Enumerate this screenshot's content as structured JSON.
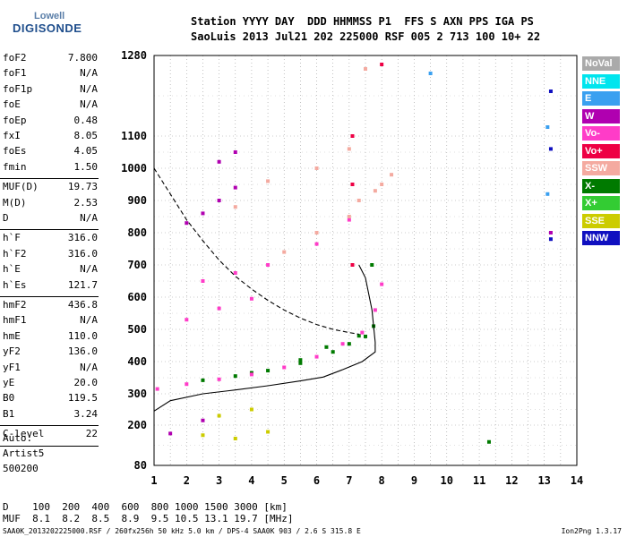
{
  "logo": {
    "top": "Lowell",
    "bottom": "DIGISONDE"
  },
  "header": {
    "line1": "Station YYYY DAY  DDD HHMMSS P1  FFS S AXN PPS IGA PS",
    "line2": "SaoLuis 2013 Jul21 202 225000 RSF 005 2 713 100 10+ 22"
  },
  "params_group1": [
    {
      "name": "foF2",
      "value": "7.800"
    },
    {
      "name": "foF1",
      "value": "N/A"
    },
    {
      "name": "foF1p",
      "value": "N/A"
    },
    {
      "name": "foE",
      "value": "N/A"
    },
    {
      "name": "foEp",
      "value": "0.48"
    },
    {
      "name": "fxI",
      "value": "8.05"
    },
    {
      "name": "foEs",
      "value": "4.05"
    },
    {
      "name": "fmin",
      "value": "1.50"
    }
  ],
  "params_group2": [
    {
      "name": "MUF(D)",
      "value": "19.73"
    },
    {
      "name": "M(D)",
      "value": "2.53"
    },
    {
      "name": "D",
      "value": "N/A"
    }
  ],
  "params_group3": [
    {
      "name": "h`F",
      "value": "316.0"
    },
    {
      "name": "h`F2",
      "value": "316.0"
    },
    {
      "name": "h`E",
      "value": "N/A"
    },
    {
      "name": "h`Es",
      "value": "121.7"
    }
  ],
  "params_group4": [
    {
      "name": "hmF2",
      "value": "436.8"
    },
    {
      "name": "hmF1",
      "value": "N/A"
    },
    {
      "name": "hmE",
      "value": "110.0"
    },
    {
      "name": "yF2",
      "value": "136.0"
    },
    {
      "name": "yF1",
      "value": "N/A"
    },
    {
      "name": "yE",
      "value": "20.0"
    },
    {
      "name": "B0",
      "value": "119.5"
    },
    {
      "name": "B1",
      "value": "3.24"
    }
  ],
  "params_group5": [
    {
      "name": "C-level",
      "value": "22"
    }
  ],
  "autoscale": {
    "label": "Auto:",
    "program": "Artist5",
    "code": "500200"
  },
  "legend": [
    {
      "label": "NoVal",
      "color": "#aaaaaa"
    },
    {
      "label": "NNE",
      "color": "#00e5ee"
    },
    {
      "label": "E",
      "color": "#3aa0f0"
    },
    {
      "label": "W",
      "color": "#b000b0"
    },
    {
      "label": "Vo-",
      "color": "#ff3cc8"
    },
    {
      "label": "Vo+",
      "color": "#ee0044"
    },
    {
      "label": "SSW",
      "color": "#f4aaa0"
    },
    {
      "label": "X-",
      "color": "#007a00"
    },
    {
      "label": "X+",
      "color": "#33cc33"
    },
    {
      "label": "SSE",
      "color": "#cccc00"
    },
    {
      "label": "NNW",
      "color": "#1010c0"
    }
  ],
  "footer": {
    "d_row": "D    100  200  400  600  800 1000 1500 3000 [km]",
    "muf_row": "MUF  8.1  8.2  8.5  8.9  9.5 10.5 13.1 19.7 [MHz]",
    "file_line": "SAA0K_2013202225000.RSF / 260fx256h 50 kHz 5.0 km / DPS-4 SAA0K 903 / 2.6 S 315.8 E",
    "version": "Ion2Png 1.3.17"
  },
  "chart_data": {
    "type": "scatter",
    "title": "",
    "xlabel": "",
    "ylabel": "",
    "xlim": [
      1,
      14
    ],
    "ylim": [
      80,
      1280
    ],
    "x_ticks": [
      1,
      2,
      3,
      4,
      5,
      6,
      7,
      8,
      9,
      10,
      11,
      12,
      13,
      14
    ],
    "y_ticks": [
      80,
      200,
      300,
      400,
      500,
      600,
      700,
      800,
      900,
      1000,
      1100,
      1280
    ],
    "grid": true,
    "legend_position": "right",
    "series": [
      {
        "name": "X-",
        "color": "#007a00",
        "x": [
          2.5,
          3.5,
          4.5,
          5.5,
          6.5,
          7.0,
          7.5,
          7.75,
          4.0,
          5.5,
          6.3,
          7.3,
          7.7,
          11.3
        ],
        "y": [
          342,
          355,
          372,
          395,
          430,
          455,
          478,
          510,
          365,
          405,
          445,
          480,
          700,
          150
        ]
      },
      {
        "name": "Vo-",
        "color": "#ff3cc8",
        "x": [
          1.1,
          2.0,
          3.0,
          4.0,
          5.0,
          6.0,
          6.8,
          7.4,
          7.8,
          8.0,
          2.0,
          3.0,
          4.0,
          2.5,
          3.5,
          4.5,
          6.0,
          7.0
        ],
        "y": [
          315,
          330,
          345,
          360,
          382,
          415,
          455,
          490,
          560,
          640,
          530,
          565,
          595,
          650,
          675,
          700,
          765,
          840
        ]
      },
      {
        "name": "SSW",
        "color": "#f4aaa0",
        "x": [
          5.0,
          6.0,
          7.0,
          7.3,
          7.8,
          8.0,
          8.3,
          6.0,
          7.0,
          3.5,
          4.5,
          7.5
        ],
        "y": [
          740,
          800,
          850,
          900,
          930,
          950,
          980,
          1000,
          1060,
          880,
          960,
          1250
        ]
      },
      {
        "name": "W",
        "color": "#b000b0",
        "x": [
          2.0,
          2.5,
          3.0,
          3.5,
          3.0,
          3.5,
          1.5,
          2.5,
          13.2
        ],
        "y": [
          830,
          860,
          900,
          940,
          1020,
          1050,
          175,
          215,
          800
        ]
      },
      {
        "name": "SSE",
        "color": "#cccc00",
        "x": [
          2.5,
          3.5,
          4.5,
          3.0,
          4.0
        ],
        "y": [
          170,
          160,
          180,
          230,
          250
        ]
      },
      {
        "name": "E",
        "color": "#3aa0f0",
        "x": [
          9.5,
          13.1,
          13.1
        ],
        "y": [
          1240,
          1120,
          920
        ]
      },
      {
        "name": "NNW",
        "color": "#1010c0",
        "x": [
          13.2,
          13.2,
          13.2
        ],
        "y": [
          1200,
          1060,
          780
        ]
      },
      {
        "name": "Vo+",
        "color": "#ee0044",
        "x": [
          7.1,
          7.1,
          7.1,
          8.0
        ],
        "y": [
          1100,
          950,
          700,
          1260
        ]
      }
    ],
    "lines": [
      {
        "name": "dashed",
        "x": [
          1.0,
          1.5,
          2.0,
          2.5,
          3.0,
          3.5,
          4.0,
          4.5,
          5.0,
          5.5,
          6.0,
          6.5,
          7.0,
          7.3
        ],
        "y": [
          1000,
          920,
          840,
          775,
          715,
          665,
          625,
          590,
          560,
          535,
          515,
          500,
          490,
          485
        ]
      },
      {
        "name": "profile",
        "x": [
          1.0,
          1.5,
          2.5,
          3.5,
          4.5,
          5.5,
          6.2,
          6.8,
          7.4,
          7.8,
          7.8,
          7.7,
          7.5,
          7.3
        ],
        "y": [
          245,
          278,
          300,
          312,
          325,
          340,
          352,
          375,
          400,
          430,
          460,
          560,
          660,
          700
        ]
      }
    ]
  }
}
